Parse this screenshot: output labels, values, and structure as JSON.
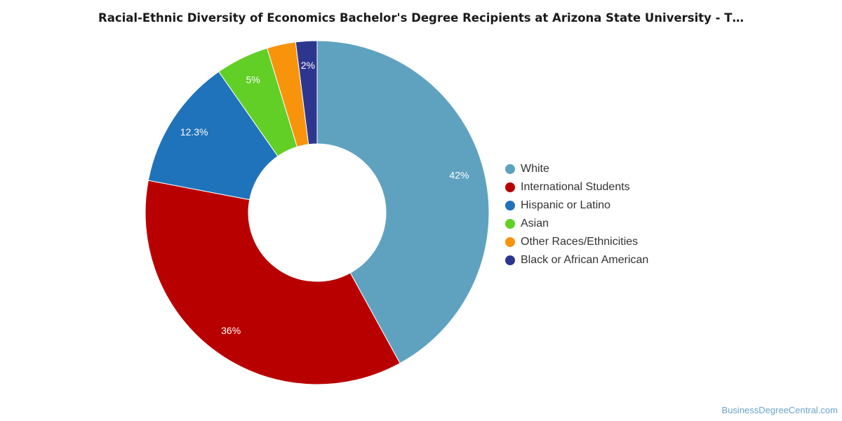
{
  "chart_data": {
    "type": "pie",
    "title": "Racial-Ethnic Diversity of Economics Bachelor's Degree Recipients at Arizona State University - T…",
    "donut": true,
    "legend_position": "right",
    "slices": [
      {
        "name": "White",
        "value": 42.0,
        "label": "42%",
        "color": "#5fa2c0"
      },
      {
        "name": "International Students",
        "value": 36.0,
        "label": "36%",
        "color": "#b90000"
      },
      {
        "name": "Hispanic or Latino",
        "value": 12.3,
        "label": "12.3%",
        "color": "#1f73bb"
      },
      {
        "name": "Asian",
        "value": 5.0,
        "label": "5%",
        "color": "#62cf27"
      },
      {
        "name": "Other Races/Ethnicities",
        "value": 2.7,
        "label": "",
        "color": "#f7940c"
      },
      {
        "name": "Black or African American",
        "value": 2.0,
        "label": "2%",
        "color": "#2d368f"
      }
    ]
  },
  "watermark": "BusinessDegreeCentral.com"
}
